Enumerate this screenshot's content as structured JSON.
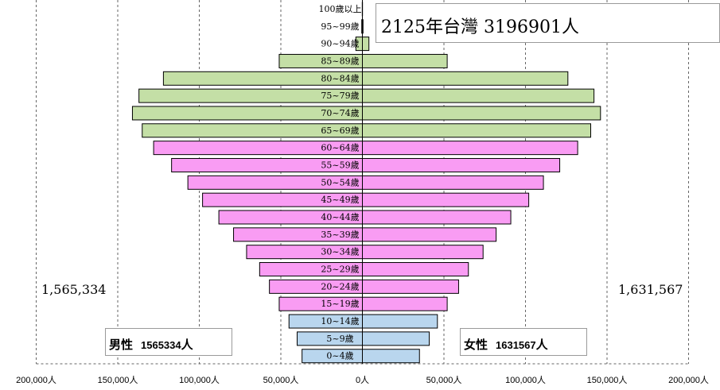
{
  "title": "2125年台灣  3196901人",
  "male": {
    "label": "男性",
    "count": "1565334",
    "unit": "人",
    "total_display": "1,565,334"
  },
  "female": {
    "label": "女性",
    "count": "1631567",
    "unit": "人",
    "total_display": "1,631,567"
  },
  "colors": {
    "elderly": "#c4dfa6",
    "working": "#f99cf3",
    "young": "#b9d6ee",
    "border": "#000000",
    "grid": "#666666"
  },
  "chart_data": {
    "type": "bar",
    "orientation": "population-pyramid",
    "categories": [
      "0~4歲",
      "5~9歲",
      "10~14歲",
      "15~19歲",
      "20~24歲",
      "25~29歲",
      "30~34歲",
      "35~39歲",
      "40~44歲",
      "45~49歲",
      "50~54歲",
      "55~59歲",
      "60~64歲",
      "65~69歲",
      "70~74歲",
      "75~79歲",
      "80~84歲",
      "85~89歲",
      "90~94歲",
      "95~99歲",
      "100歲以上"
    ],
    "groups": [
      "young",
      "young",
      "young",
      "working",
      "working",
      "working",
      "working",
      "working",
      "working",
      "working",
      "working",
      "working",
      "working",
      "elderly",
      "elderly",
      "elderly",
      "elderly",
      "elderly",
      "elderly",
      "elderly",
      "elderly"
    ],
    "series": [
      {
        "name": "男性",
        "values": [
          37000,
          40000,
          45000,
          51000,
          57000,
          63000,
          71000,
          79000,
          88000,
          98000,
          107000,
          117000,
          128000,
          135000,
          141000,
          137000,
          122000,
          51000,
          4000,
          400,
          80
        ]
      },
      {
        "name": "女性",
        "values": [
          35000,
          41000,
          46000,
          52000,
          59000,
          65000,
          74000,
          82000,
          91000,
          102000,
          111000,
          121000,
          132000,
          140000,
          146000,
          142000,
          126000,
          52000,
          4000,
          400,
          80
        ]
      }
    ],
    "x_ticks": [
      "200,000人",
      "150,000人",
      "100,000人",
      "50,000人",
      "0人",
      "50,000人",
      "100,000人",
      "150,000人",
      "200,000人"
    ],
    "xlim": [
      -200000,
      200000
    ],
    "grid": true
  }
}
